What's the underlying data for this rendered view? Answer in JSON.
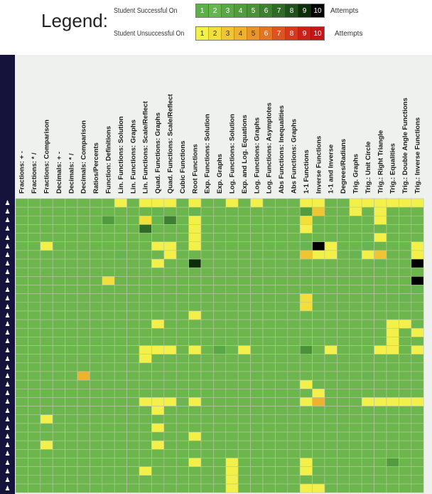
{
  "legend": {
    "title": "Legend:",
    "success_label": "Student Successful On",
    "unsuccess_label": "Student Unsuccessful On",
    "suffix": "Attempts",
    "success_colors": [
      "#5db049",
      "#67b550",
      "#5aa845",
      "#529c3f",
      "#4c9139",
      "#3f7f31",
      "#2f6a26",
      "#1f4f1a",
      "#0d2e0b",
      "#000000"
    ],
    "unsuccess_colors": [
      "#f4f04a",
      "#f2df3c",
      "#efc534",
      "#eeb22e",
      "#e99329",
      "#e47524",
      "#dc541f",
      "#d5381a",
      "#cd2018",
      "#c21716"
    ],
    "attempt_numbers": [
      "1",
      "2",
      "3",
      "4",
      "5",
      "6",
      "7",
      "8",
      "9",
      "10"
    ]
  },
  "chart_data": {
    "type": "heatmap",
    "title": "",
    "columns": [
      "Fractions: + -",
      "Fractions: * /",
      "Fractions: Comparison",
      "Decimals: + -",
      "Decimals: * /",
      "Decimals: Comparison",
      "Ratios/Percents",
      "Function: Definitions",
      "Lin. Functions: Solution",
      "Lin. Functions: Graphs",
      "Lin. Functions: Scale/Reflect",
      "Quad. Functions: Graphs",
      "Quad. Functions: Scale/Reflect",
      "Cubic Functions",
      "Root Functions",
      "Exp. Functions: Solution",
      "Exp. Graphs",
      "Log. Functions: Solution",
      "Exp. and Log. Equations",
      "Log. Functions: Graphs",
      "Log. Functions: Asymptotes",
      "Abs Functions: Inequalities",
      "Abs Functions: Graphs",
      "1-1 Functions",
      "Inverse Functions",
      "1-1 and Inverse",
      "Degrees/Radians",
      "Trig. Graphs",
      "Trig.: Unit Circle",
      "Trig.: Right Triangle",
      "Trig.: Equalities",
      "Trig.: Double Angle Functions",
      "Trig.: Inverse Functions"
    ],
    "num_students": 34,
    "value_encoding": "positive n = successful on attempt n (green scale); negative n = unsuccessful after n attempts (yellow-red scale)",
    "cells": [
      [
        1,
        1,
        1,
        1,
        1,
        1,
        1,
        1,
        -1,
        1,
        -1,
        -1,
        -1,
        1,
        -1,
        1,
        1,
        -1,
        1,
        -1,
        1,
        1,
        1,
        -1,
        -1,
        1,
        1,
        -1,
        -1,
        -1,
        -1,
        -1,
        -1
      ],
      [
        1,
        1,
        1,
        1,
        1,
        1,
        1,
        1,
        1,
        1,
        1,
        2,
        1,
        1,
        2,
        1,
        1,
        1,
        1,
        1,
        1,
        1,
        1,
        4,
        -3,
        1,
        1,
        -1,
        1,
        -1,
        1,
        1,
        1
      ],
      [
        1,
        1,
        1,
        1,
        1,
        1,
        1,
        4,
        1,
        1,
        -2,
        2,
        6,
        1,
        -1,
        1,
        1,
        1,
        1,
        1,
        1,
        1,
        1,
        -2,
        1,
        1,
        1,
        1,
        1,
        -1,
        1,
        1,
        1
      ],
      [
        1,
        1,
        1,
        1,
        1,
        1,
        1,
        1,
        1,
        1,
        7,
        1,
        1,
        1,
        -1,
        1,
        1,
        1,
        1,
        1,
        1,
        1,
        1,
        -1,
        1,
        1,
        1,
        1,
        1,
        1,
        1,
        1,
        1
      ],
      [
        1,
        1,
        1,
        1,
        1,
        1,
        1,
        1,
        1,
        1,
        1,
        1,
        1,
        1,
        -1,
        1,
        1,
        1,
        1,
        1,
        1,
        1,
        1,
        1,
        1,
        1,
        1,
        1,
        1,
        -1,
        1,
        1,
        1
      ],
      [
        1,
        1,
        -1,
        1,
        1,
        1,
        1,
        1,
        1,
        1,
        1,
        -1,
        -1,
        1,
        -1,
        1,
        1,
        1,
        1,
        1,
        1,
        1,
        1,
        2,
        10,
        -1,
        1,
        1,
        2,
        1,
        1,
        1,
        -1
      ],
      [
        1,
        1,
        1,
        1,
        1,
        1,
        1,
        1,
        2,
        1,
        1,
        1,
        -1,
        1,
        1,
        1,
        1,
        1,
        1,
        1,
        1,
        1,
        1,
        -3,
        -1,
        -1,
        1,
        2,
        -1,
        -3,
        1,
        1,
        -1
      ],
      [
        1,
        1,
        1,
        1,
        1,
        1,
        1,
        1,
        1,
        1,
        1,
        -1,
        1,
        1,
        9,
        1,
        1,
        1,
        1,
        1,
        1,
        1,
        1,
        1,
        1,
        1,
        1,
        1,
        1,
        2,
        1,
        1,
        10
      ],
      [
        1,
        1,
        1,
        1,
        1,
        1,
        1,
        1,
        1,
        1,
        1,
        1,
        1,
        1,
        1,
        1,
        1,
        1,
        1,
        1,
        1,
        1,
        1,
        1,
        1,
        1,
        1,
        1,
        1,
        1,
        1,
        1,
        1
      ],
      [
        1,
        1,
        1,
        1,
        1,
        1,
        1,
        -2,
        1,
        1,
        1,
        1,
        1,
        1,
        1,
        1,
        1,
        1,
        1,
        1,
        1,
        1,
        1,
        1,
        1,
        1,
        1,
        1,
        1,
        1,
        1,
        1,
        10
      ],
      [
        1,
        1,
        1,
        1,
        1,
        1,
        1,
        1,
        1,
        1,
        1,
        1,
        1,
        1,
        1,
        1,
        1,
        1,
        1,
        1,
        1,
        1,
        1,
        1,
        1,
        1,
        1,
        1,
        1,
        1,
        1,
        1,
        2
      ],
      [
        1,
        1,
        1,
        1,
        1,
        1,
        1,
        1,
        1,
        1,
        1,
        1,
        1,
        1,
        1,
        1,
        1,
        1,
        1,
        1,
        1,
        1,
        1,
        -2,
        1,
        1,
        1,
        1,
        1,
        1,
        1,
        2,
        1
      ],
      [
        1,
        1,
        1,
        1,
        1,
        1,
        1,
        1,
        1,
        1,
        1,
        1,
        1,
        1,
        1,
        1,
        1,
        1,
        1,
        1,
        1,
        1,
        1,
        -2,
        1,
        1,
        1,
        1,
        1,
        1,
        1,
        1,
        1
      ],
      [
        1,
        1,
        1,
        1,
        1,
        1,
        1,
        1,
        1,
        1,
        1,
        1,
        1,
        1,
        -1,
        1,
        1,
        1,
        1,
        1,
        1,
        1,
        1,
        1,
        1,
        1,
        1,
        1,
        1,
        1,
        1,
        1,
        1
      ],
      [
        1,
        1,
        1,
        1,
        1,
        1,
        1,
        1,
        1,
        1,
        1,
        -1,
        1,
        1,
        1,
        1,
        1,
        1,
        1,
        1,
        1,
        1,
        1,
        1,
        1,
        1,
        1,
        1,
        1,
        1,
        -1,
        -1,
        1
      ],
      [
        1,
        1,
        1,
        1,
        1,
        1,
        1,
        1,
        1,
        1,
        1,
        1,
        1,
        1,
        1,
        1,
        1,
        1,
        1,
        1,
        1,
        1,
        1,
        1,
        1,
        1,
        1,
        1,
        1,
        1,
        -1,
        1,
        -1
      ],
      [
        1,
        1,
        1,
        1,
        1,
        1,
        1,
        1,
        1,
        1,
        1,
        1,
        1,
        1,
        1,
        1,
        1,
        1,
        1,
        1,
        1,
        1,
        1,
        1,
        1,
        1,
        1,
        1,
        1,
        1,
        -1,
        1,
        1
      ],
      [
        1,
        1,
        1,
        1,
        1,
        1,
        1,
        1,
        1,
        1,
        -1,
        -1,
        -1,
        1,
        -1,
        1,
        3,
        1,
        -1,
        1,
        1,
        1,
        1,
        5,
        1,
        -1,
        1,
        1,
        1,
        -1,
        -1,
        1,
        -1
      ],
      [
        1,
        1,
        1,
        1,
        1,
        1,
        1,
        1,
        1,
        1,
        -1,
        1,
        1,
        1,
        1,
        1,
        1,
        1,
        1,
        1,
        1,
        1,
        1,
        1,
        1,
        1,
        1,
        1,
        1,
        1,
        1,
        1,
        1
      ],
      [
        1,
        1,
        1,
        1,
        1,
        1,
        1,
        1,
        1,
        1,
        1,
        1,
        1,
        1,
        1,
        1,
        1,
        1,
        1,
        1,
        1,
        1,
        1,
        1,
        1,
        1,
        1,
        1,
        1,
        1,
        1,
        1,
        1
      ],
      [
        1,
        1,
        1,
        1,
        1,
        -4,
        1,
        1,
        1,
        1,
        1,
        1,
        1,
        1,
        1,
        1,
        1,
        1,
        1,
        1,
        1,
        1,
        1,
        1,
        1,
        1,
        1,
        1,
        2,
        1,
        1,
        1,
        1
      ],
      [
        1,
        1,
        1,
        1,
        1,
        1,
        1,
        1,
        1,
        1,
        1,
        1,
        1,
        1,
        1,
        1,
        1,
        1,
        1,
        1,
        1,
        1,
        1,
        -1,
        1,
        1,
        1,
        1,
        1,
        1,
        1,
        1,
        1
      ],
      [
        1,
        1,
        1,
        1,
        1,
        1,
        1,
        1,
        1,
        1,
        1,
        1,
        1,
        1,
        1,
        1,
        1,
        1,
        1,
        1,
        1,
        1,
        1,
        1,
        -1,
        1,
        1,
        1,
        1,
        1,
        1,
        1,
        1
      ],
      [
        1,
        1,
        1,
        1,
        1,
        1,
        1,
        1,
        1,
        1,
        -1,
        -1,
        -1,
        1,
        -1,
        1,
        1,
        1,
        1,
        1,
        1,
        1,
        1,
        -1,
        -4,
        1,
        1,
        1,
        -1,
        -1,
        -1,
        -1,
        -1
      ],
      [
        1,
        1,
        1,
        1,
        1,
        1,
        1,
        1,
        1,
        1,
        1,
        -1,
        1,
        1,
        1,
        1,
        1,
        1,
        1,
        1,
        1,
        1,
        1,
        1,
        1,
        1,
        1,
        1,
        1,
        1,
        1,
        1,
        1
      ],
      [
        1,
        1,
        -1,
        1,
        1,
        1,
        1,
        1,
        1,
        1,
        1,
        1,
        1,
        1,
        1,
        1,
        1,
        1,
        1,
        1,
        1,
        1,
        1,
        1,
        1,
        1,
        1,
        1,
        1,
        1,
        1,
        1,
        1
      ],
      [
        1,
        1,
        1,
        1,
        1,
        1,
        1,
        1,
        1,
        1,
        1,
        -1,
        1,
        1,
        1,
        1,
        1,
        1,
        1,
        1,
        1,
        1,
        1,
        1,
        1,
        1,
        1,
        1,
        1,
        1,
        1,
        1,
        1
      ],
      [
        1,
        1,
        1,
        1,
        1,
        1,
        1,
        1,
        1,
        1,
        1,
        1,
        1,
        1,
        -1,
        1,
        1,
        1,
        1,
        1,
        1,
        1,
        1,
        1,
        1,
        1,
        1,
        1,
        1,
        1,
        1,
        1,
        1
      ],
      [
        1,
        1,
        -1,
        1,
        1,
        1,
        1,
        1,
        1,
        1,
        1,
        -1,
        1,
        1,
        1,
        1,
        1,
        1,
        1,
        1,
        1,
        1,
        1,
        1,
        1,
        1,
        1,
        1,
        1,
        1,
        1,
        1,
        1
      ],
      [
        1,
        1,
        1,
        1,
        1,
        1,
        1,
        1,
        1,
        1,
        1,
        1,
        1,
        1,
        1,
        1,
        1,
        1,
        1,
        1,
        1,
        1,
        1,
        1,
        1,
        1,
        1,
        1,
        1,
        1,
        1,
        1,
        1
      ],
      [
        1,
        1,
        1,
        1,
        1,
        1,
        1,
        1,
        1,
        1,
        1,
        1,
        1,
        1,
        -1,
        1,
        1,
        -1,
        1,
        1,
        1,
        1,
        1,
        -1,
        1,
        1,
        1,
        1,
        1,
        1,
        4,
        1,
        1
      ],
      [
        1,
        1,
        1,
        1,
        1,
        1,
        1,
        1,
        1,
        1,
        -1,
        1,
        1,
        1,
        1,
        1,
        1,
        -1,
        1,
        1,
        1,
        1,
        1,
        -1,
        1,
        1,
        1,
        1,
        1,
        1,
        1,
        1,
        1
      ],
      [
        1,
        1,
        1,
        1,
        1,
        1,
        1,
        1,
        1,
        1,
        1,
        1,
        1,
        1,
        1,
        1,
        1,
        -1,
        1,
        1,
        1,
        1,
        1,
        1,
        1,
        1,
        1,
        1,
        1,
        1,
        1,
        1,
        1
      ],
      [
        1,
        1,
        1,
        1,
        1,
        1,
        1,
        1,
        1,
        1,
        1,
        1,
        1,
        1,
        1,
        1,
        1,
        -1,
        1,
        1,
        1,
        1,
        1,
        -1,
        -1,
        1,
        1,
        1,
        1,
        1,
        1,
        1,
        1
      ]
    ]
  }
}
